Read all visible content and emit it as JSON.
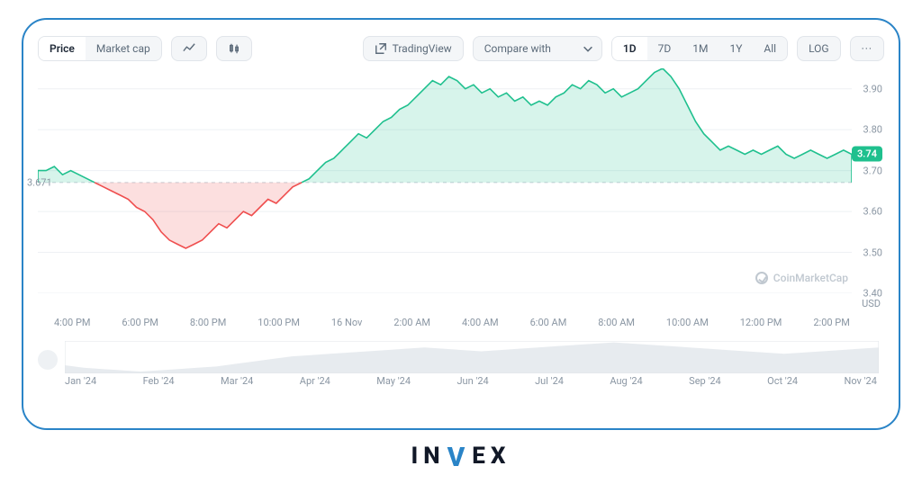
{
  "colors": {
    "frame_border": "#2a84c7",
    "grid": "#eef1f4",
    "text_muted": "#8a96a3",
    "green_line": "#1fc08e",
    "green_fill": "rgba(31,192,142,0.18)",
    "red_line": "#ef4e4e",
    "red_fill": "rgba(239,78,78,0.18)",
    "tag_bg": "#1fc08e"
  },
  "toolbar": {
    "price_tab": "Price",
    "marketcap_tab": "Market cap",
    "tradingview": "TradingView",
    "compare": "Compare with",
    "range_labels": [
      "1D",
      "7D",
      "1M",
      "1Y",
      "All"
    ],
    "log_label": "LOG",
    "more_label": "···"
  },
  "chart": {
    "type": "area",
    "watermark": "CoinMarketCap",
    "baseline": 3.671,
    "baseline_label": "3.671",
    "current_price_label": "3.74",
    "current_price": 3.74,
    "ylim": [
      3.4,
      3.95
    ],
    "y_ticks": [
      3.4,
      3.5,
      3.6,
      3.7,
      3.8,
      3.9
    ],
    "y_tick_labels": [
      "3.40",
      "3.50",
      "3.60",
      "3.70",
      "3.80",
      "3.90"
    ],
    "x_tick_labels": [
      "4:00 PM",
      "6:00 PM",
      "8:00 PM",
      "10:00 PM",
      "16 Nov",
      "2:00 AM",
      "4:00 AM",
      "6:00 AM",
      "8:00 AM",
      "10:00 AM",
      "12:00 PM",
      "2:00 PM"
    ],
    "usd_label": "USD",
    "series": [
      3.7,
      3.7,
      3.71,
      3.69,
      3.7,
      3.69,
      3.68,
      3.67,
      3.66,
      3.65,
      3.64,
      3.63,
      3.61,
      3.6,
      3.58,
      3.55,
      3.53,
      3.52,
      3.51,
      3.52,
      3.53,
      3.55,
      3.57,
      3.56,
      3.58,
      3.6,
      3.59,
      3.61,
      3.63,
      3.62,
      3.64,
      3.66,
      3.67,
      3.68,
      3.7,
      3.72,
      3.73,
      3.75,
      3.77,
      3.79,
      3.78,
      3.8,
      3.82,
      3.83,
      3.85,
      3.86,
      3.88,
      3.9,
      3.92,
      3.91,
      3.93,
      3.92,
      3.9,
      3.91,
      3.89,
      3.9,
      3.88,
      3.89,
      3.87,
      3.88,
      3.86,
      3.87,
      3.86,
      3.88,
      3.89,
      3.91,
      3.9,
      3.92,
      3.91,
      3.89,
      3.9,
      3.88,
      3.89,
      3.9,
      3.92,
      3.94,
      3.95,
      3.93,
      3.9,
      3.86,
      3.82,
      3.79,
      3.77,
      3.75,
      3.76,
      3.75,
      3.74,
      3.75,
      3.74,
      3.75,
      3.76,
      3.74,
      3.73,
      3.74,
      3.75,
      3.74,
      3.73,
      3.74,
      3.75,
      3.74
    ]
  },
  "overview": {
    "months": [
      "Jan '24",
      "Feb '24",
      "Mar '24",
      "Apr '24",
      "May '24",
      "Jun '24",
      "Jul '24",
      "Aug '24",
      "Sep '24",
      "Oct '24",
      "Nov '24"
    ],
    "series": [
      8,
      6,
      5,
      4,
      3,
      4,
      5,
      6,
      7,
      9,
      11,
      13,
      15,
      16,
      17,
      18,
      19,
      20,
      21,
      22,
      21,
      20,
      19,
      20,
      21,
      22,
      23,
      24,
      25,
      26,
      25,
      24,
      23,
      22,
      21,
      20,
      19,
      18,
      17,
      18,
      19,
      20,
      21,
      22
    ]
  },
  "brand": {
    "left": "IN",
    "mid": "V",
    "right": "EX"
  }
}
